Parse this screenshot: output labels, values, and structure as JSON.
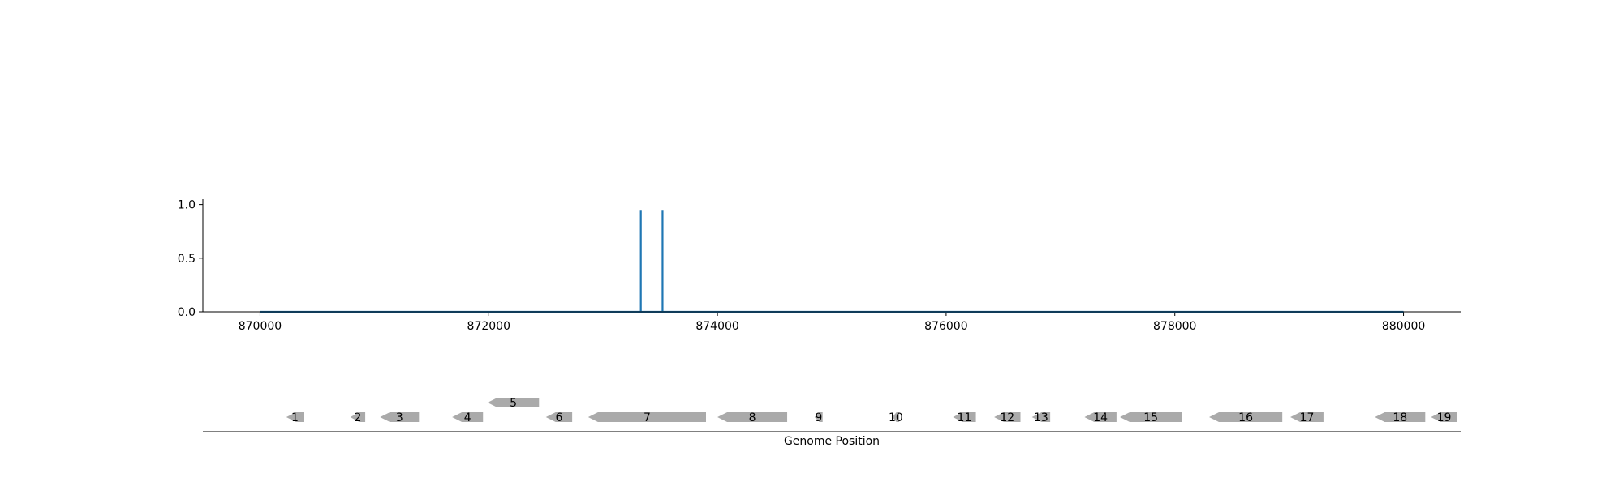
{
  "chart_data": [
    {
      "type": "line",
      "xlim": [
        869500,
        880500
      ],
      "ylim": [
        0.0,
        1.05
      ],
      "xticks": [
        870000,
        872000,
        874000,
        876000,
        878000,
        880000
      ],
      "yticks": [
        0.0,
        0.5,
        1.0
      ],
      "ytick_labels": [
        "0.0",
        "0.5",
        "1.0"
      ],
      "grid": false,
      "color": "#1f77b4",
      "series": [
        {
          "x": [
            870000,
            873330,
            873330,
            873330,
            873520,
            873520,
            873520,
            880000
          ],
          "y": [
            0.0,
            0.0,
            0.95,
            0.0,
            0.0,
            0.95,
            0.0,
            0.0
          ]
        }
      ]
    },
    {
      "type": "gene-track",
      "xlabel": "Genome Position",
      "gene_color": "#aaaaaa",
      "genes": [
        {
          "label": "1",
          "start": 870230,
          "end": 870380,
          "strand": "-",
          "row": 0
        },
        {
          "label": "2",
          "start": 870790,
          "end": 870920,
          "strand": "-",
          "row": 0
        },
        {
          "label": "3",
          "start": 871050,
          "end": 871390,
          "strand": "-",
          "row": 0
        },
        {
          "label": "4",
          "start": 871680,
          "end": 871950,
          "strand": "-",
          "row": 0
        },
        {
          "label": "5",
          "start": 871990,
          "end": 872440,
          "strand": "-",
          "row": 1
        },
        {
          "label": "6",
          "start": 872500,
          "end": 872730,
          "strand": "-",
          "row": 0
        },
        {
          "label": "7",
          "start": 872870,
          "end": 873900,
          "strand": "-",
          "row": 0
        },
        {
          "label": "8",
          "start": 874000,
          "end": 874610,
          "strand": "-",
          "row": 0
        },
        {
          "label": "9",
          "start": 874850,
          "end": 874920,
          "strand": "-",
          "row": 0
        },
        {
          "label": "10",
          "start": 875530,
          "end": 875590,
          "strand": "-",
          "row": 0
        },
        {
          "label": "11",
          "start": 876060,
          "end": 876260,
          "strand": "-",
          "row": 0
        },
        {
          "label": "12",
          "start": 876420,
          "end": 876650,
          "strand": "-",
          "row": 0
        },
        {
          "label": "13",
          "start": 876750,
          "end": 876910,
          "strand": "-",
          "row": 0
        },
        {
          "label": "14",
          "start": 877210,
          "end": 877490,
          "strand": "-",
          "row": 0
        },
        {
          "label": "15",
          "start": 877520,
          "end": 878060,
          "strand": "-",
          "row": 0
        },
        {
          "label": "16",
          "start": 878300,
          "end": 878940,
          "strand": "-",
          "row": 0
        },
        {
          "label": "17",
          "start": 879010,
          "end": 879300,
          "strand": "-",
          "row": 0
        },
        {
          "label": "18",
          "start": 879750,
          "end": 880190,
          "strand": "-",
          "row": 0
        },
        {
          "label": "19",
          "start": 880240,
          "end": 880470,
          "strand": "-",
          "row": 0
        }
      ]
    }
  ]
}
